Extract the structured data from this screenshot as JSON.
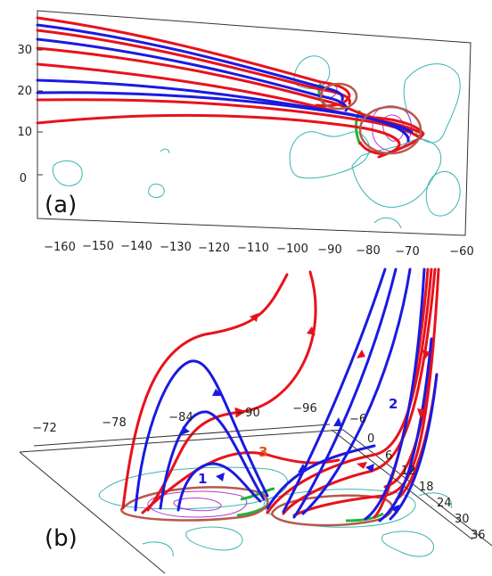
{
  "panel_a": {
    "label": "(a)",
    "y_ticks": [
      "30",
      "20",
      "10",
      "0"
    ],
    "x_ticks": [
      "−160",
      "−150",
      "−140",
      "−130",
      "−120",
      "−110",
      "−100",
      "−90",
      "−80",
      "−70",
      "−60"
    ]
  },
  "panel_b": {
    "label": "(b)",
    "x_axis_ticks": [
      "−72",
      "−78",
      "−84",
      "−90",
      "−96"
    ],
    "y_axis_ticks": [
      "−6",
      "0",
      "6",
      "12",
      "18",
      "24",
      "30",
      "36"
    ],
    "loop_labels": [
      "1",
      "2",
      "3"
    ]
  },
  "colors": {
    "red_lines": "#e8121b",
    "blue_lines": "#1a1ae0",
    "cyan_contours": "#3ab5b0",
    "magenta_contours": "#b03ad0",
    "green_segments": "#22b43a"
  }
}
